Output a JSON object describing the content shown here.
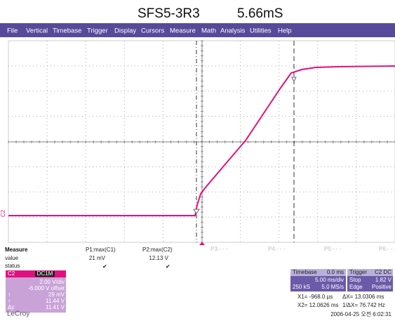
{
  "header": {
    "title": "SFS5-3R3",
    "value": "5.66mS"
  },
  "menu": [
    "File",
    "Vertical",
    "Timebase",
    "Trigger",
    "Display",
    "Cursors",
    "Measure",
    "Math",
    "Analysis",
    "Utilities",
    "Help"
  ],
  "trace": {
    "label": "C2"
  },
  "params": [
    "P3:- - -",
    "P4:- - -",
    "P5:- - -",
    "P6:- - -"
  ],
  "measure": {
    "title": "Measure",
    "row_value": "value",
    "row_status": "status",
    "p1": {
      "name": "P1:max(C1)",
      "value": "21 mV",
      "status": "✔"
    },
    "p2": {
      "name": "P2:max(C2)",
      "value": "12.13 V",
      "status": "✔"
    }
  },
  "channel": {
    "name": "C2",
    "coupling": "DC1M",
    "scale": "2.00 V/div",
    "offset": "-6.000 V offset",
    "c1_sym": "↑",
    "c1": "29 mV",
    "c2_sym": "↑",
    "c2": "11.44 V",
    "dy_sym": "Δy",
    "dy": "11.41 V"
  },
  "timebase": {
    "title": "Timebase",
    "delay": "0.0 ms",
    "div": "5.00 ms/div",
    "samples": "250 kS",
    "rate": "5.0 MS/s"
  },
  "trigger": {
    "title": "Trigger",
    "source": "C2 DC",
    "mode": "Stop",
    "level": "1.82 V",
    "type": "Edge",
    "slope": "Positive"
  },
  "cursors": {
    "x1": "X1=   -968.0 µs",
    "dx": "ΔX= 13.0306 ms",
    "x2": "X2= 12.0626 ms",
    "inv": "1/ΔX=  76.742 Hz"
  },
  "footer": {
    "brand": "LeCroy",
    "timestamp": "2006-04-25 오전 6:02:31"
  }
}
